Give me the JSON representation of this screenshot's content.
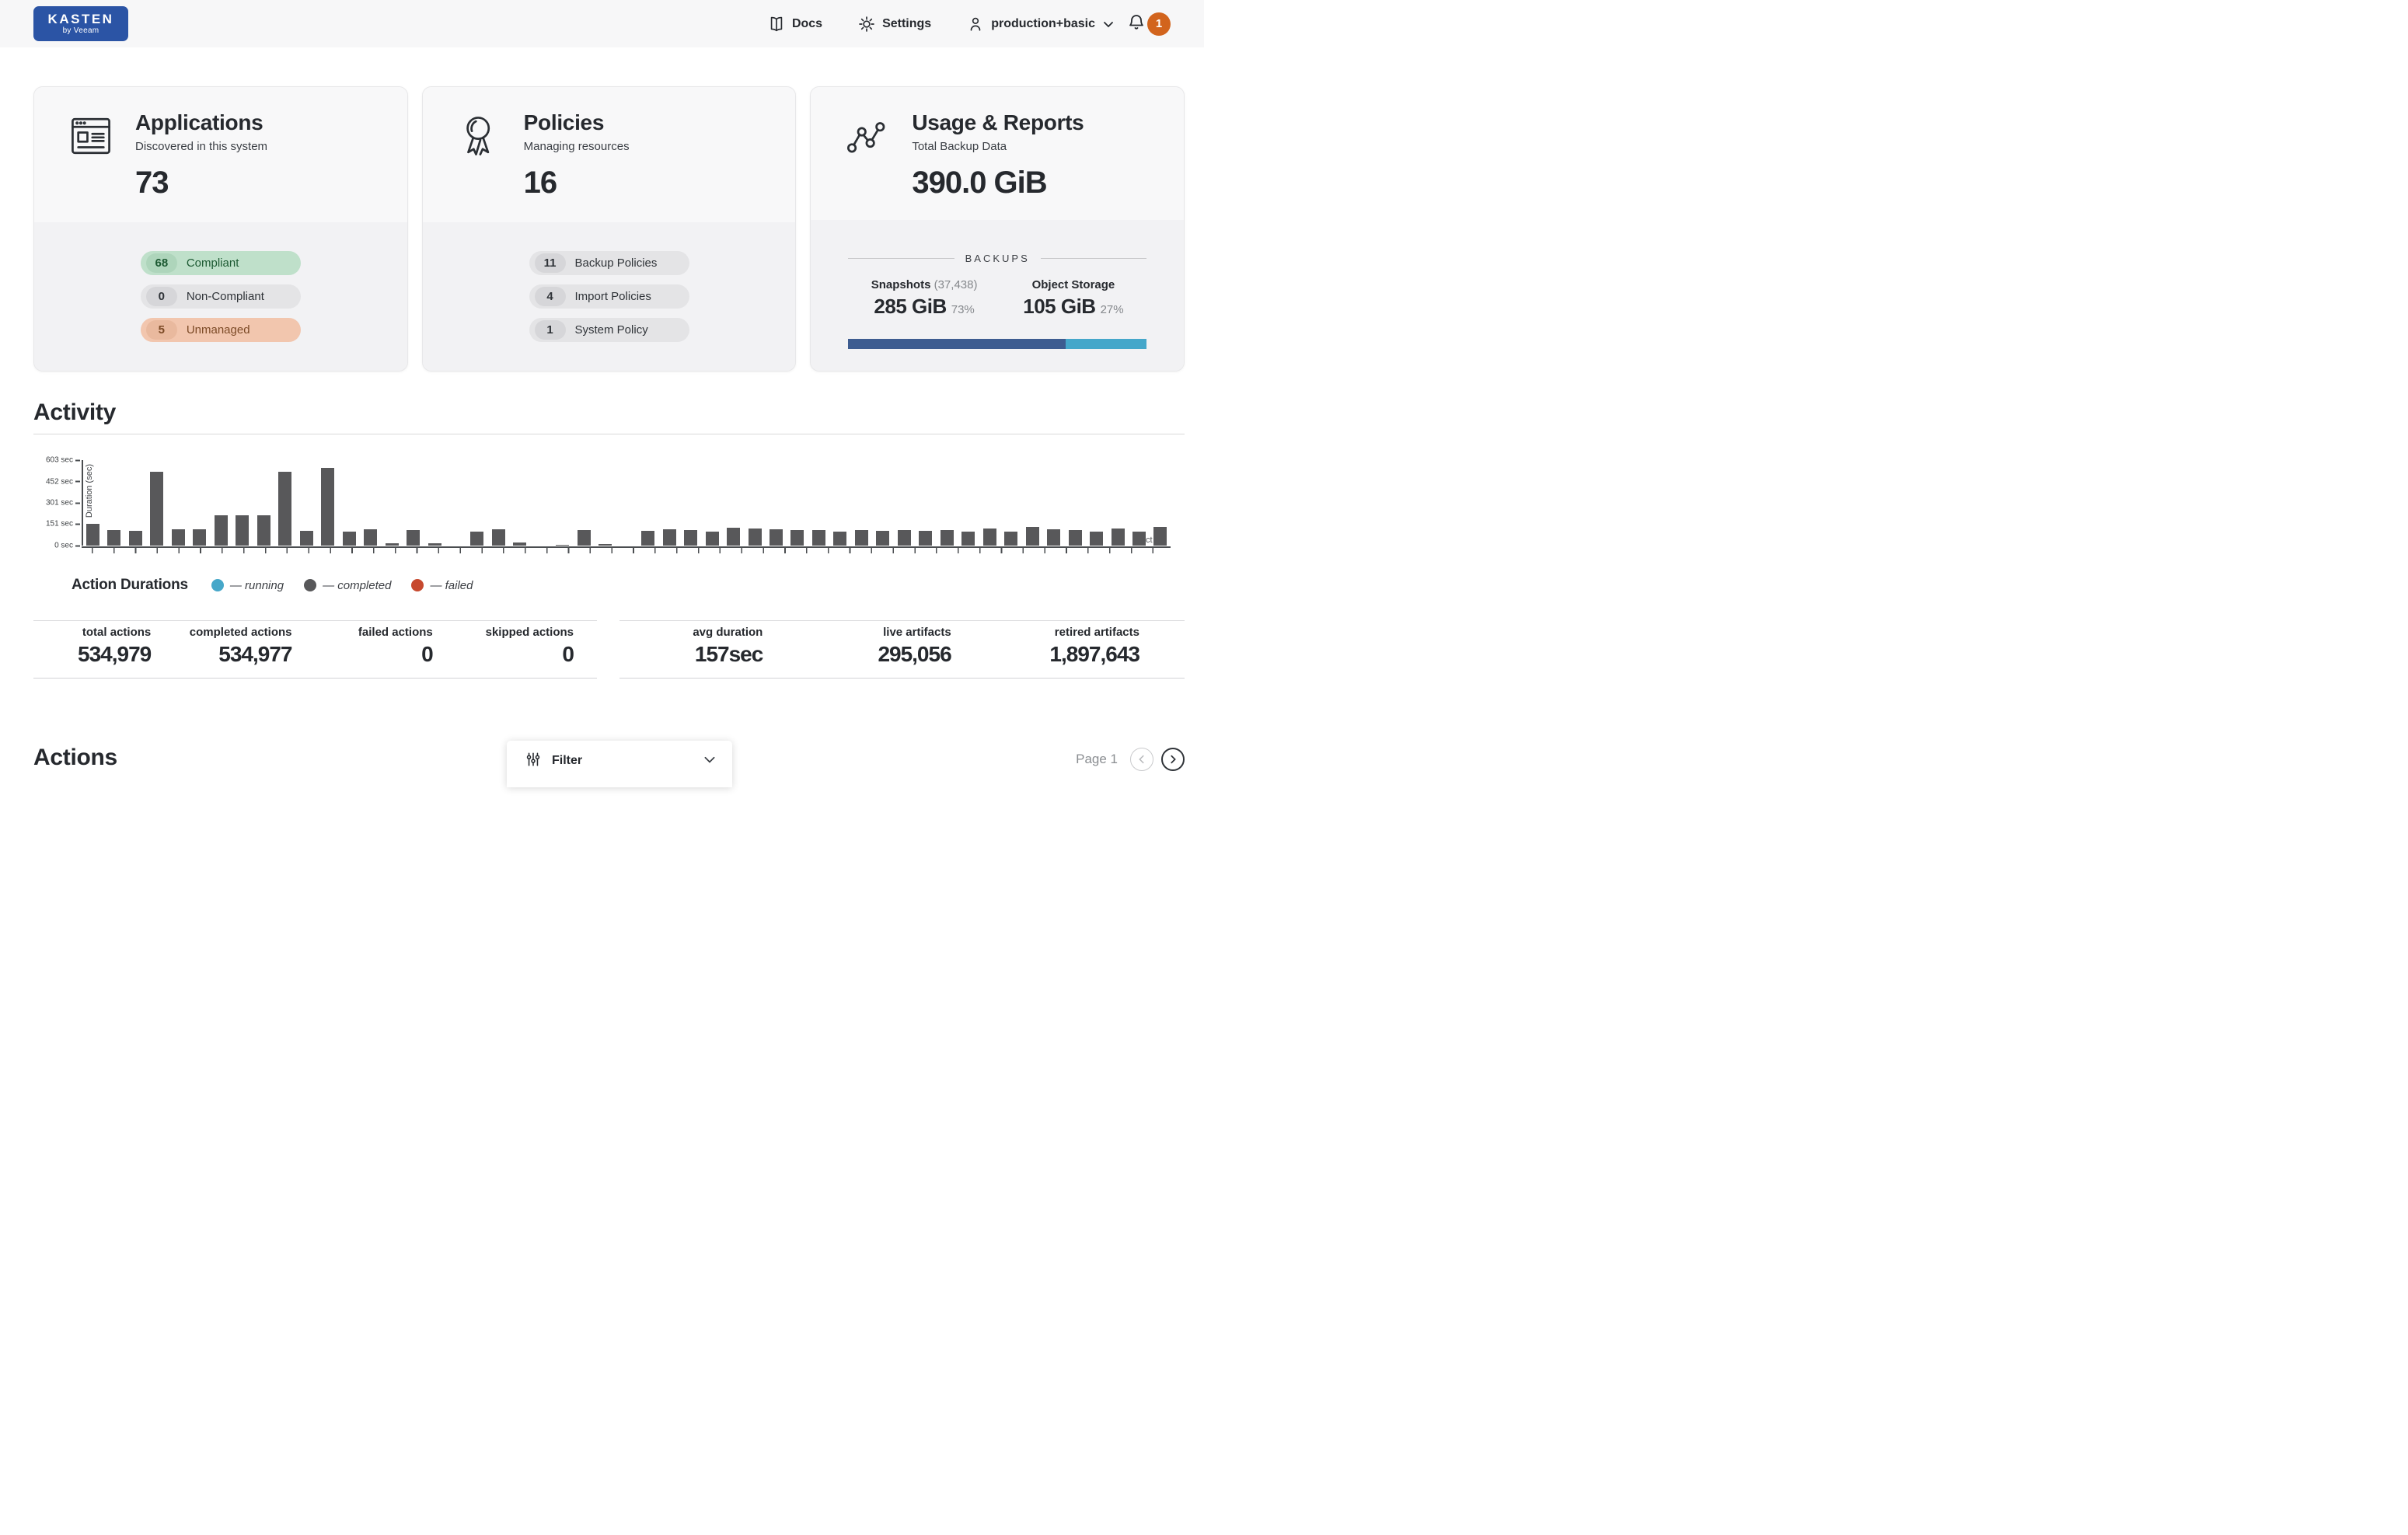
{
  "header": {
    "logo": {
      "line1": "KASTEN",
      "line2": "by Veeam",
      "color": "#2b54a5"
    },
    "nav": [
      {
        "label": "Docs",
        "icon": "book-icon"
      },
      {
        "label": "Settings",
        "icon": "gear-icon"
      },
      {
        "label": "production+basic",
        "icon": "user-icon",
        "chevron": true
      }
    ],
    "notifications": {
      "icon": "bell-icon",
      "count": "1",
      "badge_color": "#d2641d"
    }
  },
  "cards": {
    "applications": {
      "title": "Applications",
      "subtitle": "Discovered in this system",
      "count": "73",
      "icon": "browser-window-icon",
      "badges": [
        {
          "count": "68",
          "label": "Compliant",
          "style": "green"
        },
        {
          "count": "0",
          "label": "Non-Compliant",
          "style": "gray"
        },
        {
          "count": "5",
          "label": "Unmanaged",
          "style": "orange"
        }
      ]
    },
    "policies": {
      "title": "Policies",
      "subtitle": "Managing resources",
      "count": "16",
      "icon": "award-ribbon-icon",
      "badges": [
        {
          "count": "11",
          "label": "Backup Policies",
          "style": "gray"
        },
        {
          "count": "4",
          "label": "Import Policies",
          "style": "gray"
        },
        {
          "count": "1",
          "label": "System Policy",
          "style": "gray"
        }
      ]
    },
    "usage": {
      "title": "Usage & Reports",
      "subtitle": "Total Backup Data",
      "total": "390.0 GiB",
      "icon": "scatter-graph-icon",
      "divider_label": "BACKUPS",
      "snapshots": {
        "label": "Snapshots",
        "count_paren": "(37,438)",
        "size": "285 GiB",
        "pct": "73%"
      },
      "object_storage": {
        "label": "Object Storage",
        "size": "105 GiB",
        "pct": "27%"
      },
      "bar": {
        "snapshots_pct": 73,
        "object_pct": 27,
        "snapshots_color": "#3d5c90",
        "object_color": "#45a7ca"
      }
    }
  },
  "activity": {
    "title": "Activity",
    "stats_left": [
      {
        "label": "total actions",
        "value": "534,979"
      },
      {
        "label": "completed actions",
        "value": "534,977"
      },
      {
        "label": "failed actions",
        "value": "0"
      },
      {
        "label": "skipped actions",
        "value": "0"
      }
    ],
    "stats_right": [
      {
        "label": "avg duration",
        "value": "157sec"
      },
      {
        "label": "live artifacts",
        "value": "295,056"
      },
      {
        "label": "retired artifacts",
        "value": "1,897,643"
      }
    ]
  },
  "chart_data": {
    "type": "bar",
    "title": "Action Durations",
    "ylabel": "Duration (sec)",
    "ylim": [
      0,
      603
    ],
    "yticks": [
      {
        "label": "0 sec",
        "value": 0
      },
      {
        "label": "151 sec",
        "value": 151
      },
      {
        "label": "301 sec",
        "value": 301
      },
      {
        "label": "452 sec",
        "value": 452
      },
      {
        "label": "603 sec",
        "value": 603
      }
    ],
    "values": [
      153,
      110,
      103,
      520,
      114,
      114,
      214,
      214,
      214,
      520,
      103,
      548,
      100,
      114,
      15,
      108,
      15,
      0,
      100,
      115,
      20,
      0,
      8,
      112,
      10,
      0,
      105,
      118,
      112,
      100,
      128,
      122,
      118,
      112,
      112,
      100,
      108,
      105,
      112,
      105,
      108,
      100,
      122,
      100,
      132,
      115,
      112,
      100,
      122,
      100,
      130
    ],
    "bar_color": "#58585a",
    "grid": false,
    "legend_position": "bottom",
    "legend": [
      {
        "name": "running",
        "label": "— running",
        "color": "#46a7c9"
      },
      {
        "name": "completed",
        "label": "— completed",
        "color": "#58585a"
      },
      {
        "name": "failed",
        "label": "— failed",
        "color": "#c7492e"
      }
    ],
    "axis_artifact_text": "ct"
  },
  "actions_section": {
    "title": "Actions",
    "filter_label": "Filter",
    "filter_icon": "filter-sliders-icon",
    "page_label": "Page 1"
  }
}
